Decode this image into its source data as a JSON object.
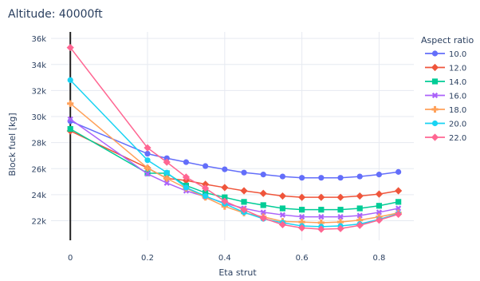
{
  "chart_data": {
    "type": "line",
    "title": "Altitude: 40000ft",
    "xlabel": "Eta strut",
    "ylabel": "Block fuel [kg]",
    "xlim": [
      -0.05,
      0.89
    ],
    "ylim": [
      20500,
      36500
    ],
    "x_ticks": [
      0,
      0.2,
      0.4,
      0.6,
      0.8
    ],
    "x_tick_labels": [
      "0",
      "0.2",
      "0.4",
      "0.6",
      "0.8"
    ],
    "y_ticks": [
      22000,
      24000,
      26000,
      28000,
      30000,
      32000,
      34000,
      36000
    ],
    "y_tick_labels": [
      "22k",
      "24k",
      "26k",
      "28k",
      "30k",
      "32k",
      "34k",
      "36k"
    ],
    "grid": true,
    "legend_title": "Aspect ratio",
    "legend_position": "right",
    "x": [
      0,
      0.2,
      0.25,
      0.3,
      0.35,
      0.4,
      0.45,
      0.5,
      0.55,
      0.6,
      0.65,
      0.7,
      0.75,
      0.8,
      0.85
    ],
    "series": [
      {
        "name": "10.0",
        "color": "#636efa",
        "marker": "circle",
        "values": [
          29650,
          27150,
          26800,
          26500,
          26200,
          25950,
          25700,
          25550,
          25400,
          25300,
          25300,
          25300,
          25400,
          25550,
          25750
        ]
      },
      {
        "name": "12.0",
        "color": "#ef553b",
        "marker": "diamond",
        "values": [
          28900,
          26050,
          25250,
          25100,
          24800,
          24550,
          24300,
          24100,
          23900,
          23800,
          23800,
          23800,
          23900,
          24050,
          24300
        ]
      },
      {
        "name": "14.0",
        "color": "#00cc96",
        "marker": "square",
        "values": [
          29050,
          25650,
          25650,
          24700,
          24150,
          23800,
          23450,
          23200,
          22950,
          22850,
          22850,
          22850,
          22950,
          23150,
          23450
        ]
      },
      {
        "name": "16.0",
        "color": "#ab63fa",
        "marker": "x",
        "values": [
          29800,
          25600,
          24900,
          24300,
          23850,
          23350,
          22950,
          22650,
          22450,
          22300,
          22300,
          22300,
          22400,
          22650,
          22950
        ]
      },
      {
        "name": "18.0",
        "color": "#ffa15a",
        "marker": "cross",
        "values": [
          31000,
          26050,
          25250,
          24500,
          23800,
          23100,
          22600,
          22300,
          21950,
          21900,
          21850,
          21900,
          22050,
          22300,
          22600
        ]
      },
      {
        "name": "20.0",
        "color": "#19d3f3",
        "marker": "circle",
        "values": [
          32800,
          26650,
          25700,
          24550,
          23900,
          23300,
          22650,
          22150,
          21850,
          21600,
          21550,
          21600,
          21750,
          22100,
          22550
        ]
      },
      {
        "name": "22.0",
        "color": "#ff6692",
        "marker": "diamond",
        "values": [
          35300,
          27600,
          26500,
          25350,
          24500,
          23500,
          22850,
          22200,
          21700,
          21450,
          21350,
          21400,
          21650,
          22050,
          22500
        ]
      }
    ]
  }
}
